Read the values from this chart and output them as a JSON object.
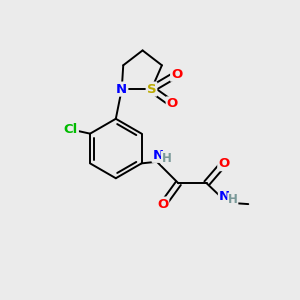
{
  "background_color": "#ebebeb",
  "bond_color": "#000000",
  "atom_colors": {
    "N": "#0000ff",
    "O": "#ff0000",
    "S": "#bbaa00",
    "Cl": "#00bb00",
    "C": "#000000",
    "H": "#7a9999"
  },
  "figsize": [
    3.0,
    3.0
  ],
  "dpi": 100,
  "lw": 1.4,
  "fs": 8.5
}
